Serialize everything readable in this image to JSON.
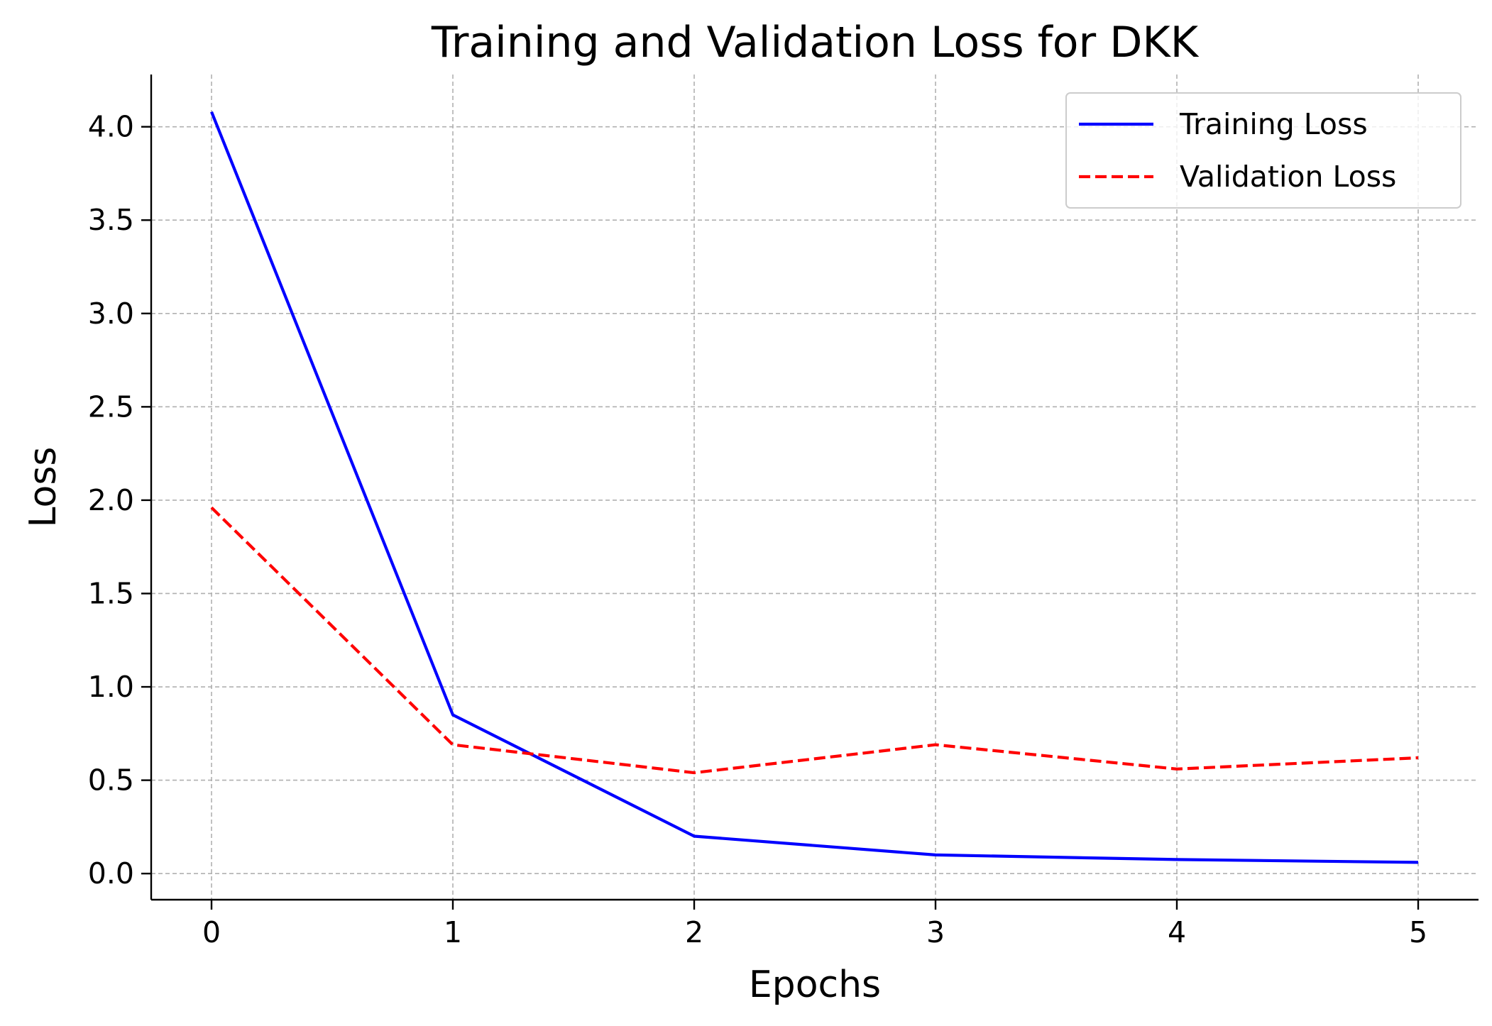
{
  "chart_data": {
    "type": "line",
    "title": "Training and Validation Loss for DKK",
    "xlabel": "Epochs",
    "ylabel": "Loss",
    "x": [
      0,
      1,
      2,
      3,
      4,
      5
    ],
    "xlim": [
      -0.25,
      5.25
    ],
    "ylim": [
      -0.14,
      4.28
    ],
    "x_ticks": [
      "0",
      "1",
      "2",
      "3",
      "4",
      "5"
    ],
    "y_ticks": [
      "0.0",
      "0.5",
      "1.0",
      "1.5",
      "2.0",
      "2.5",
      "3.0",
      "3.5",
      "4.0"
    ],
    "grid": true,
    "legend_position": "top-right",
    "series": [
      {
        "name": "Training Loss",
        "values": [
          4.08,
          0.85,
          0.2,
          0.1,
          0.075,
          0.06
        ],
        "color": "#0000ff",
        "line_style": "solid"
      },
      {
        "name": "Validation Loss",
        "values": [
          1.96,
          0.69,
          0.54,
          0.69,
          0.56,
          0.62
        ],
        "color": "#ff0000",
        "line_style": "dashed"
      }
    ]
  }
}
